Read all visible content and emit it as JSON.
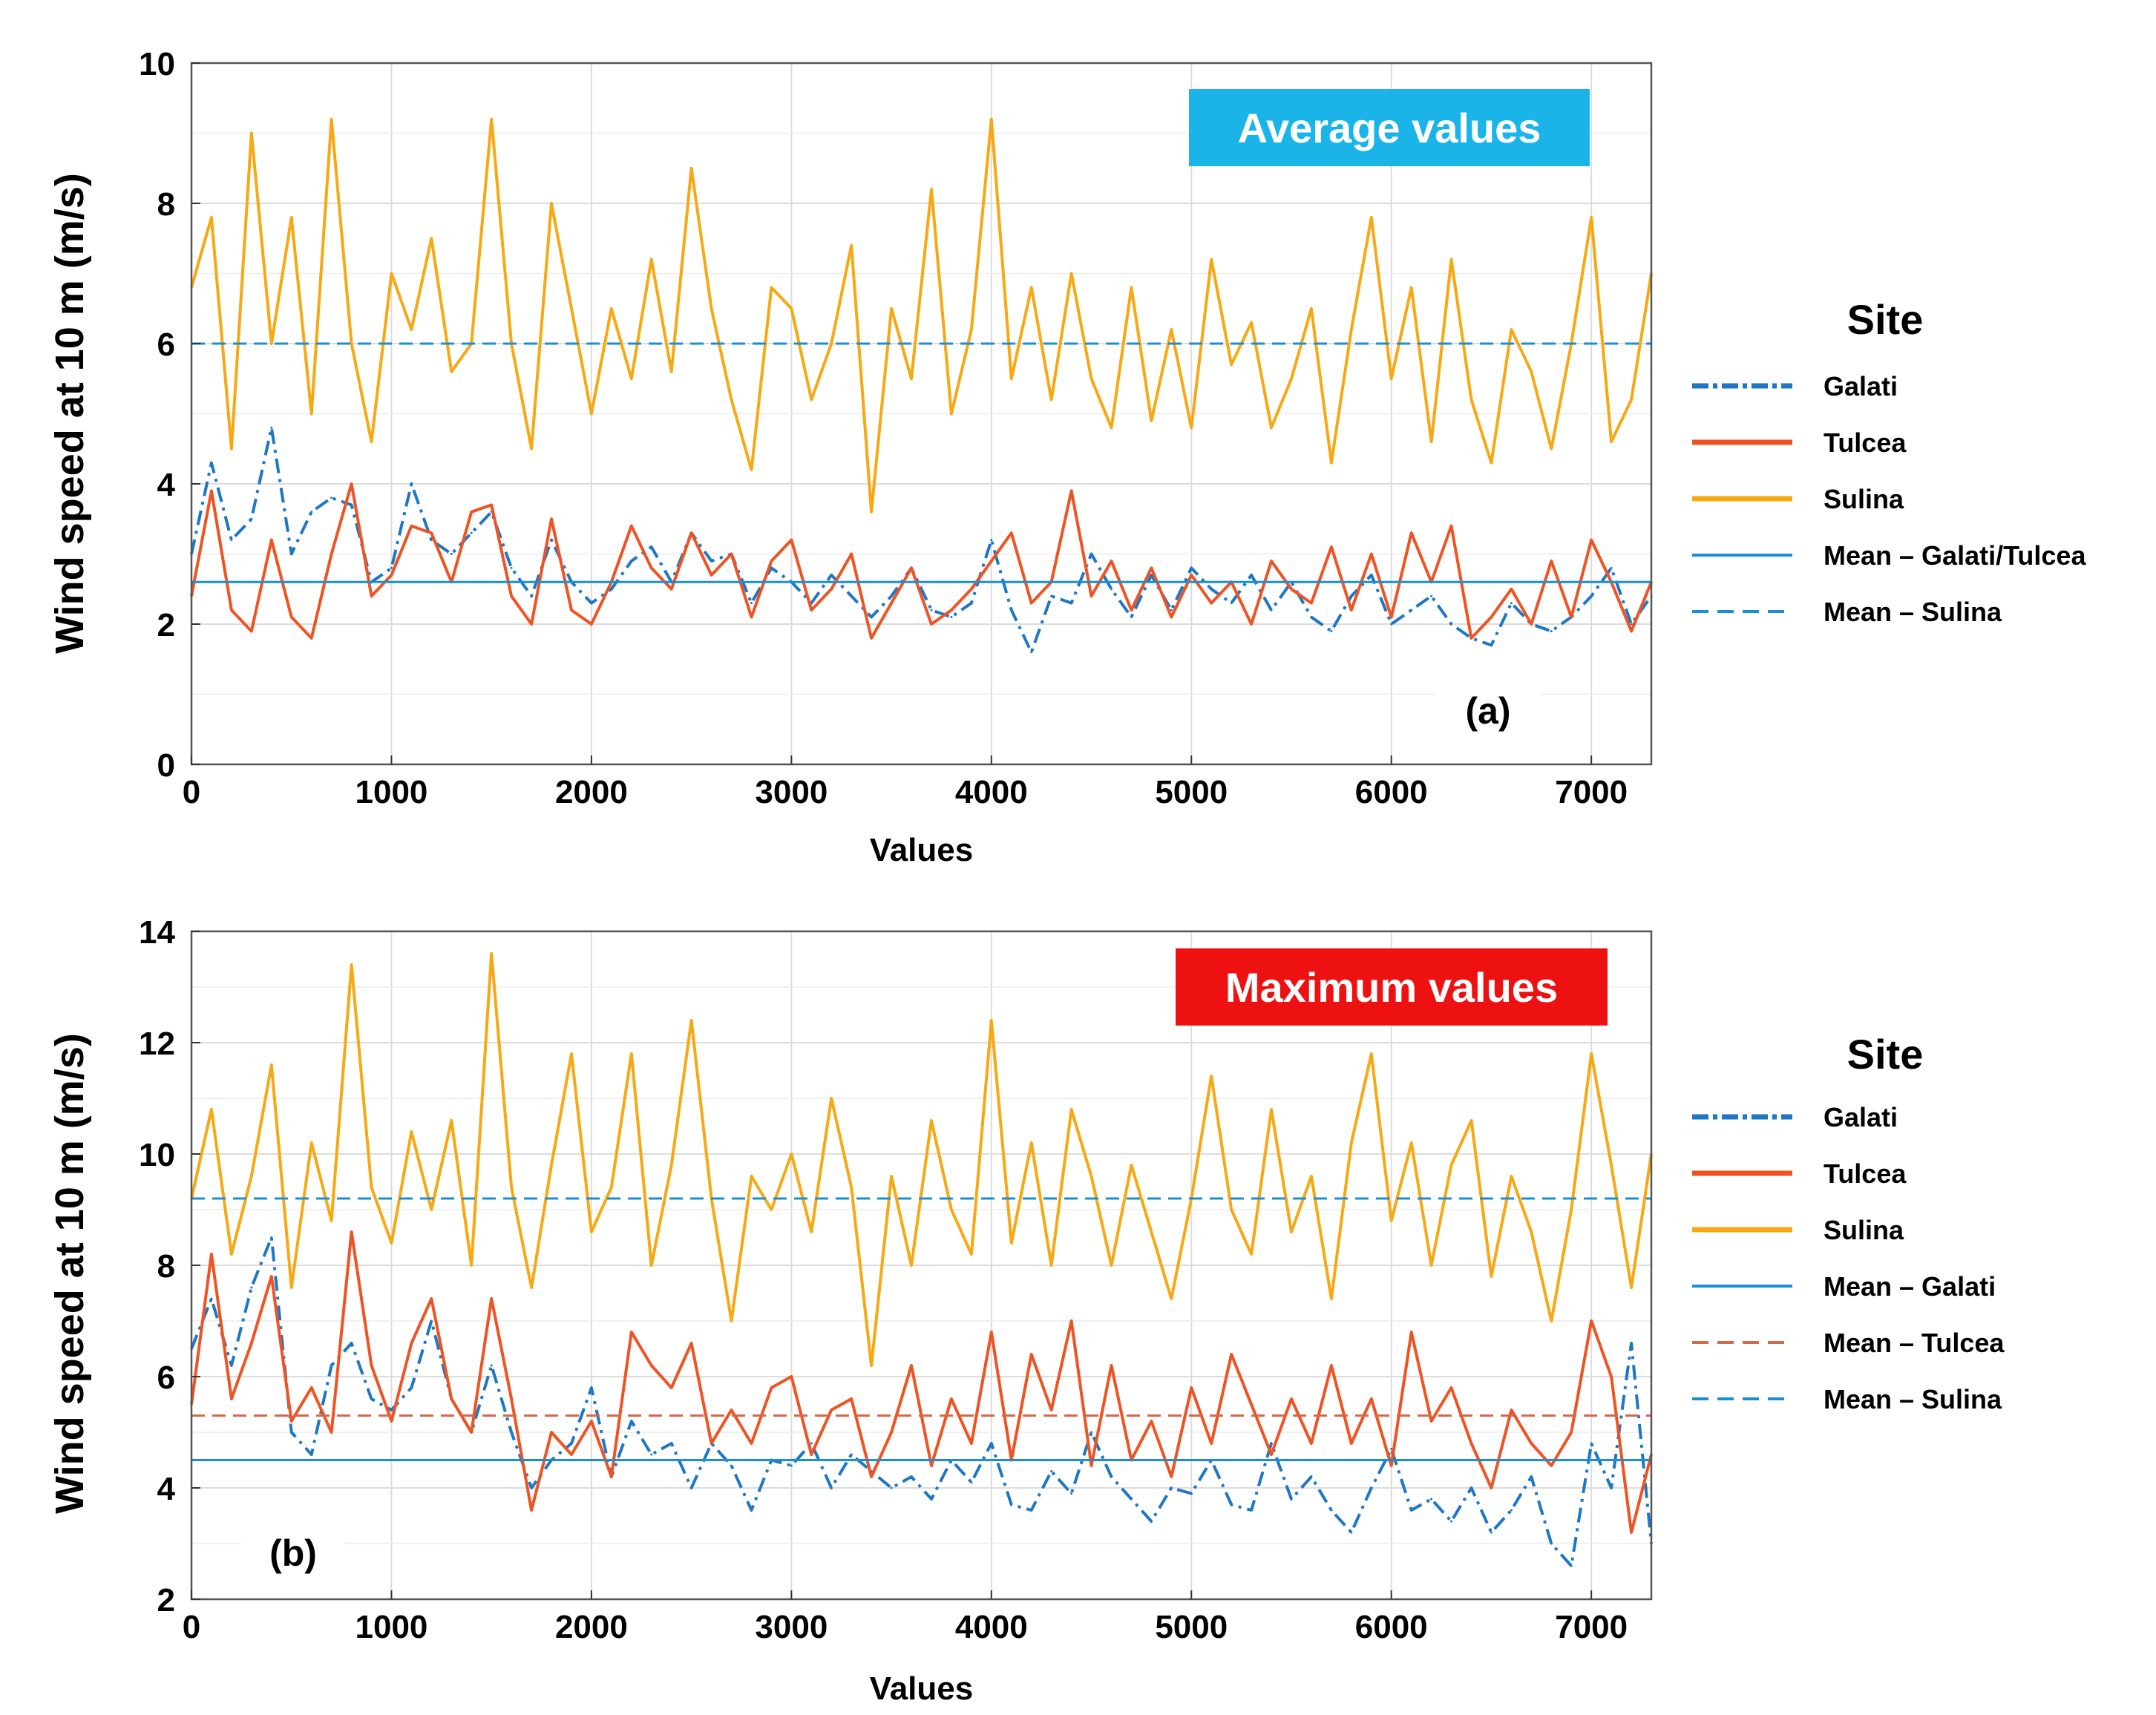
{
  "chart_data": [
    {
      "type": "line",
      "panel_label": "(a)",
      "badge": "Average values",
      "badge_color": "#1ab4e8",
      "xlabel": "Values",
      "ylabel": "Wind speed at 10 m (m/s)",
      "xlim": [
        0,
        7300
      ],
      "ylim": [
        0,
        10
      ],
      "xticks": [
        "0",
        "1000",
        "2000",
        "3000",
        "4000",
        "5000",
        "6000",
        "7000"
      ],
      "yticks": [
        "0",
        "2",
        "4",
        "6",
        "8",
        "10"
      ],
      "grid": true,
      "legend_position": "right",
      "legend_title": "Site",
      "series": [
        {
          "name": "Galati",
          "color": "#1f77c4",
          "style": "dashdot",
          "x": [
            0,
            100,
            200,
            300,
            400,
            500,
            600,
            700,
            800,
            900,
            1000,
            1100,
            1200,
            1300,
            1400,
            1500,
            1600,
            1700,
            1800,
            1900,
            2000,
            2100,
            2200,
            2300,
            2400,
            2500,
            2600,
            2700,
            2800,
            2900,
            3000,
            3100,
            3200,
            3300,
            3400,
            3500,
            3600,
            3700,
            3800,
            3900,
            4000,
            4100,
            4200,
            4300,
            4400,
            4500,
            4600,
            4700,
            4800,
            4900,
            5000,
            5100,
            5200,
            5300,
            5400,
            5500,
            5600,
            5700,
            5800,
            5900,
            6000,
            6100,
            6200,
            6300,
            6400,
            6500,
            6600,
            6700,
            6800,
            6900,
            7000,
            7100,
            7200,
            7300
          ],
          "y": [
            3.0,
            4.3,
            3.2,
            3.5,
            4.8,
            3.0,
            3.6,
            3.8,
            3.7,
            2.6,
            2.8,
            4.0,
            3.2,
            3.0,
            3.3,
            3.6,
            2.8,
            2.4,
            3.2,
            2.6,
            2.3,
            2.5,
            2.9,
            3.1,
            2.6,
            3.3,
            2.9,
            3.0,
            2.3,
            2.8,
            2.6,
            2.3,
            2.7,
            2.4,
            2.1,
            2.4,
            2.8,
            2.2,
            2.1,
            2.3,
            3.2,
            2.2,
            1.6,
            2.4,
            2.3,
            3.0,
            2.5,
            2.1,
            2.7,
            2.2,
            2.8,
            2.5,
            2.3,
            2.7,
            2.2,
            2.6,
            2.1,
            1.9,
            2.4,
            2.7,
            2.0,
            2.2,
            2.4,
            2.0,
            1.8,
            1.7,
            2.3,
            2.0,
            1.9,
            2.1,
            2.4,
            2.8,
            2.0,
            2.4
          ]
        },
        {
          "name": "Tulcea",
          "color": "#f05323",
          "style": "solid",
          "x": [
            0,
            100,
            200,
            300,
            400,
            500,
            600,
            700,
            800,
            900,
            1000,
            1100,
            1200,
            1300,
            1400,
            1500,
            1600,
            1700,
            1800,
            1900,
            2000,
            2100,
            2200,
            2300,
            2400,
            2500,
            2600,
            2700,
            2800,
            2900,
            3000,
            3100,
            3200,
            3300,
            3400,
            3500,
            3600,
            3700,
            3800,
            3900,
            4000,
            4100,
            4200,
            4300,
            4400,
            4500,
            4600,
            4700,
            4800,
            4900,
            5000,
            5100,
            5200,
            5300,
            5400,
            5500,
            5600,
            5700,
            5800,
            5900,
            6000,
            6100,
            6200,
            6300,
            6400,
            6500,
            6600,
            6700,
            6800,
            6900,
            7000,
            7100,
            7200,
            7300
          ],
          "y": [
            2.4,
            3.9,
            2.2,
            1.9,
            3.2,
            2.1,
            1.8,
            3.0,
            4.0,
            2.4,
            2.7,
            3.4,
            3.3,
            2.6,
            3.6,
            3.7,
            2.4,
            2.0,
            3.5,
            2.2,
            2.0,
            2.6,
            3.4,
            2.8,
            2.5,
            3.3,
            2.7,
            3.0,
            2.1,
            2.9,
            3.2,
            2.2,
            2.5,
            3.0,
            1.8,
            2.3,
            2.8,
            2.0,
            2.2,
            2.5,
            2.9,
            3.3,
            2.3,
            2.6,
            3.9,
            2.4,
            2.9,
            2.2,
            2.8,
            2.1,
            2.7,
            2.3,
            2.6,
            2.0,
            2.9,
            2.5,
            2.3,
            3.1,
            2.2,
            3.0,
            2.1,
            3.3,
            2.6,
            3.4,
            1.8,
            2.1,
            2.5,
            2.0,
            2.9,
            2.1,
            3.2,
            2.6,
            1.9,
            2.6
          ]
        },
        {
          "name": "Sulina",
          "color": "#f7a813",
          "style": "solid",
          "x": [
            0,
            100,
            200,
            300,
            400,
            500,
            600,
            700,
            800,
            900,
            1000,
            1100,
            1200,
            1300,
            1400,
            1500,
            1600,
            1700,
            1800,
            1900,
            2000,
            2100,
            2200,
            2300,
            2400,
            2500,
            2600,
            2700,
            2800,
            2900,
            3000,
            3100,
            3200,
            3300,
            3400,
            3500,
            3600,
            3700,
            3800,
            3900,
            4000,
            4100,
            4200,
            4300,
            4400,
            4500,
            4600,
            4700,
            4800,
            4900,
            5000,
            5100,
            5200,
            5300,
            5400,
            5500,
            5600,
            5700,
            5800,
            5900,
            6000,
            6100,
            6200,
            6300,
            6400,
            6500,
            6600,
            6700,
            6800,
            6900,
            7000,
            7100,
            7200,
            7300
          ],
          "y": [
            6.8,
            7.8,
            4.5,
            9.0,
            6.0,
            7.8,
            5.0,
            9.2,
            6.0,
            4.6,
            7.0,
            6.2,
            7.5,
            5.6,
            6.0,
            9.2,
            6.0,
            4.5,
            8.0,
            6.5,
            5.0,
            6.5,
            5.5,
            7.2,
            5.6,
            8.5,
            6.5,
            5.2,
            4.2,
            6.8,
            6.5,
            5.2,
            6.0,
            7.4,
            3.6,
            6.5,
            5.5,
            8.2,
            5.0,
            6.2,
            9.2,
            5.5,
            6.8,
            5.2,
            7.0,
            5.5,
            4.8,
            6.8,
            4.9,
            6.2,
            4.8,
            7.2,
            5.7,
            6.3,
            4.8,
            5.5,
            6.5,
            4.3,
            6.2,
            7.8,
            5.5,
            6.8,
            4.6,
            7.2,
            5.2,
            4.3,
            6.2,
            5.6,
            4.5,
            6.0,
            7.8,
            4.6,
            5.2,
            7.0
          ]
        },
        {
          "name": "Mean – Galati/Tulcea",
          "color": "#1a8fd6",
          "style": "solid",
          "mean": 2.6
        },
        {
          "name": "Mean  –  Sulina",
          "color": "#1a8fd6",
          "style": "dashed",
          "mean": 6.0
        }
      ]
    },
    {
      "type": "line",
      "panel_label": "(b)",
      "badge": "Maximum values",
      "badge_color": "#ee1111",
      "xlabel": "Values",
      "ylabel": "Wind speed at 10 m (m/s)",
      "xlim": [
        0,
        7300
      ],
      "ylim": [
        2,
        14
      ],
      "xticks": [
        "0",
        "1000",
        "2000",
        "3000",
        "4000",
        "5000",
        "6000",
        "7000"
      ],
      "yticks": [
        "2",
        "4",
        "6",
        "8",
        "10",
        "12",
        "14"
      ],
      "grid": true,
      "legend_position": "right",
      "legend_title": "Site",
      "series": [
        {
          "name": "Galati",
          "color": "#1f77c4",
          "style": "dashdot",
          "x": [
            0,
            100,
            200,
            300,
            400,
            500,
            600,
            700,
            800,
            900,
            1000,
            1100,
            1200,
            1300,
            1400,
            1500,
            1600,
            1700,
            1800,
            1900,
            2000,
            2100,
            2200,
            2300,
            2400,
            2500,
            2600,
            2700,
            2800,
            2900,
            3000,
            3100,
            3200,
            3300,
            3400,
            3500,
            3600,
            3700,
            3800,
            3900,
            4000,
            4100,
            4200,
            4300,
            4400,
            4500,
            4600,
            4700,
            4800,
            4900,
            5000,
            5100,
            5200,
            5300,
            5400,
            5500,
            5600,
            5700,
            5800,
            5900,
            6000,
            6100,
            6200,
            6300,
            6400,
            6500,
            6600,
            6700,
            6800,
            6900,
            7000,
            7100,
            7200,
            7300
          ],
          "y": [
            6.5,
            7.4,
            6.2,
            7.6,
            8.5,
            5.0,
            4.6,
            6.2,
            6.6,
            5.6,
            5.4,
            5.8,
            7.0,
            5.6,
            5.0,
            6.2,
            5.0,
            4.0,
            4.5,
            4.8,
            5.8,
            4.2,
            5.2,
            4.6,
            4.8,
            4.0,
            4.8,
            4.4,
            3.6,
            4.5,
            4.4,
            4.8,
            4.0,
            4.6,
            4.3,
            4.0,
            4.2,
            3.8,
            4.5,
            4.1,
            4.8,
            3.7,
            3.6,
            4.3,
            3.9,
            5.0,
            4.2,
            3.8,
            3.4,
            4.0,
            3.9,
            4.5,
            3.7,
            3.6,
            4.8,
            3.8,
            4.2,
            3.6,
            3.2,
            4.0,
            4.7,
            3.6,
            3.8,
            3.4,
            4.0,
            3.2,
            3.6,
            4.2,
            3.0,
            2.6,
            4.8,
            4.0,
            6.6,
            3.0
          ]
        },
        {
          "name": "Tulcea",
          "color": "#f05323",
          "style": "solid",
          "x": [
            0,
            100,
            200,
            300,
            400,
            500,
            600,
            700,
            800,
            900,
            1000,
            1100,
            1200,
            1300,
            1400,
            1500,
            1600,
            1700,
            1800,
            1900,
            2000,
            2100,
            2200,
            2300,
            2400,
            2500,
            2600,
            2700,
            2800,
            2900,
            3000,
            3100,
            3200,
            3300,
            3400,
            3500,
            3600,
            3700,
            3800,
            3900,
            4000,
            4100,
            4200,
            4300,
            4400,
            4500,
            4600,
            4700,
            4800,
            4900,
            5000,
            5100,
            5200,
            5300,
            5400,
            5500,
            5600,
            5700,
            5800,
            5900,
            6000,
            6100,
            6200,
            6300,
            6400,
            6500,
            6600,
            6700,
            6800,
            6900,
            7000,
            7100,
            7200,
            7300
          ],
          "y": [
            5.5,
            8.2,
            5.6,
            6.6,
            7.8,
            5.2,
            5.8,
            5.0,
            8.6,
            6.2,
            5.2,
            6.6,
            7.4,
            5.6,
            5.0,
            7.4,
            5.6,
            3.6,
            5.0,
            4.6,
            5.2,
            4.2,
            6.8,
            6.2,
            5.8,
            6.6,
            4.8,
            5.4,
            4.8,
            5.8,
            6.0,
            4.6,
            5.4,
            5.6,
            4.2,
            5.0,
            6.2,
            4.4,
            5.6,
            4.8,
            6.8,
            4.5,
            6.4,
            5.4,
            7.0,
            4.4,
            6.2,
            4.5,
            5.2,
            4.2,
            5.8,
            4.8,
            6.4,
            5.5,
            4.6,
            5.6,
            4.8,
            6.2,
            4.8,
            5.6,
            4.4,
            6.8,
            5.2,
            5.8,
            4.8,
            4.0,
            5.4,
            4.8,
            4.4,
            5.0,
            7.0,
            6.0,
            3.2,
            4.6
          ]
        },
        {
          "name": "Sulina",
          "color": "#f7a813",
          "style": "solid",
          "x": [
            0,
            100,
            200,
            300,
            400,
            500,
            600,
            700,
            800,
            900,
            1000,
            1100,
            1200,
            1300,
            1400,
            1500,
            1600,
            1700,
            1800,
            1900,
            2000,
            2100,
            2200,
            2300,
            2400,
            2500,
            2600,
            2700,
            2800,
            2900,
            3000,
            3100,
            3200,
            3300,
            3400,
            3500,
            3600,
            3700,
            3800,
            3900,
            4000,
            4100,
            4200,
            4300,
            4400,
            4500,
            4600,
            4700,
            4800,
            4900,
            5000,
            5100,
            5200,
            5300,
            5400,
            5500,
            5600,
            5700,
            5800,
            5900,
            6000,
            6100,
            6200,
            6300,
            6400,
            6500,
            6600,
            6700,
            6800,
            6900,
            7000,
            7100,
            7200,
            7300
          ],
          "y": [
            9.2,
            10.8,
            8.2,
            9.6,
            11.6,
            7.6,
            10.2,
            8.8,
            13.4,
            9.4,
            8.4,
            10.4,
            9.0,
            10.6,
            8.0,
            13.6,
            9.4,
            7.6,
            9.8,
            11.8,
            8.6,
            9.4,
            11.8,
            8.0,
            9.8,
            12.4,
            9.2,
            7.0,
            9.6,
            9.0,
            10.0,
            8.6,
            11.0,
            9.4,
            6.2,
            9.6,
            8.0,
            10.6,
            9.0,
            8.2,
            12.4,
            8.4,
            10.2,
            8.0,
            10.8,
            9.6,
            8.0,
            9.8,
            8.6,
            7.4,
            9.2,
            11.4,
            9.0,
            8.2,
            10.8,
            8.6,
            9.6,
            7.4,
            10.2,
            11.8,
            8.8,
            10.2,
            8.0,
            9.8,
            10.6,
            7.8,
            9.6,
            8.6,
            7.0,
            9.0,
            11.8,
            9.8,
            7.6,
            10.0
          ]
        },
        {
          "name": "Mean – Galati",
          "color": "#1a8fd6",
          "style": "solid",
          "mean": 4.5
        },
        {
          "name": "Mean – Tulcea",
          "color": "#d4694a",
          "style": "dashed",
          "mean": 5.3
        },
        {
          "name": "Mean  –  Sulina",
          "color": "#1a8fd6",
          "style": "dashed",
          "mean": 9.2
        }
      ]
    }
  ]
}
